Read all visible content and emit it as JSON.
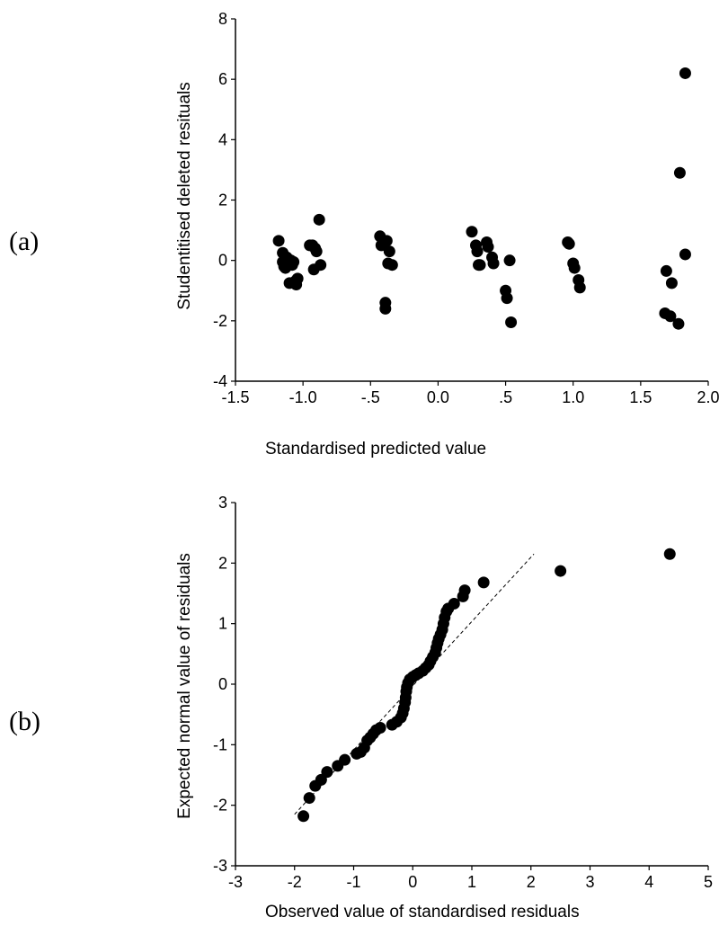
{
  "chart_data": [
    {
      "type": "scatter",
      "panel_label": "(a)",
      "title": "",
      "xlabel": "Standardised predicted value",
      "ylabel": "Studentitised deleted resituals",
      "xlim": [
        -1.5,
        2.0
      ],
      "ylim": [
        -4,
        8
      ],
      "xticks": [
        -1.5,
        -1.0,
        -0.5,
        0.0,
        0.5,
        1.0,
        1.5,
        2.0
      ],
      "xtick_labels": [
        "-1.5",
        "-1.0",
        "-.5",
        "0.0",
        ".5",
        "1.0",
        "1.5",
        "2.0"
      ],
      "yticks": [
        -4,
        -2,
        0,
        2,
        4,
        6,
        8
      ],
      "ytick_labels": [
        "-4",
        "-2",
        "0",
        "2",
        "4",
        "6",
        "8"
      ],
      "grid": false,
      "points": [
        [
          -1.18,
          0.65
        ],
        [
          -1.15,
          0.25
        ],
        [
          -1.15,
          -0.05
        ],
        [
          -1.14,
          -0.2
        ],
        [
          -1.13,
          -0.25
        ],
        [
          -1.12,
          0.1
        ],
        [
          -1.11,
          -0.1
        ],
        [
          -1.1,
          -0.75
        ],
        [
          -1.09,
          0.0
        ],
        [
          -1.08,
          -0.15
        ],
        [
          -1.07,
          -0.05
        ],
        [
          -1.06,
          -0.7
        ],
        [
          -1.05,
          -0.8
        ],
        [
          -1.04,
          -0.6
        ],
        [
          -0.95,
          0.5
        ],
        [
          -0.93,
          0.5
        ],
        [
          -0.92,
          -0.3
        ],
        [
          -0.91,
          0.4
        ],
        [
          -0.9,
          0.3
        ],
        [
          -0.88,
          1.35
        ],
        [
          -0.87,
          -0.15
        ],
        [
          -0.43,
          0.8
        ],
        [
          -0.42,
          0.5
        ],
        [
          -0.39,
          -1.4
        ],
        [
          -0.39,
          -1.6
        ],
        [
          -0.38,
          0.65
        ],
        [
          -0.37,
          -0.1
        ],
        [
          -0.36,
          0.3
        ],
        [
          -0.34,
          -0.15
        ],
        [
          0.25,
          0.95
        ],
        [
          0.28,
          0.5
        ],
        [
          0.29,
          0.3
        ],
        [
          0.3,
          -0.15
        ],
        [
          0.31,
          -0.15
        ],
        [
          0.36,
          0.6
        ],
        [
          0.37,
          0.45
        ],
        [
          0.4,
          0.1
        ],
        [
          0.41,
          -0.1
        ],
        [
          0.5,
          -1.0
        ],
        [
          0.51,
          -1.25
        ],
        [
          0.53,
          0.0
        ],
        [
          0.54,
          -2.05
        ],
        [
          0.96,
          0.6
        ],
        [
          0.97,
          0.55
        ],
        [
          1.0,
          -0.1
        ],
        [
          1.01,
          -0.25
        ],
        [
          1.04,
          -0.65
        ],
        [
          1.05,
          -0.9
        ],
        [
          1.68,
          -1.75
        ],
        [
          1.69,
          -0.35
        ],
        [
          1.72,
          -1.85
        ],
        [
          1.73,
          -0.75
        ],
        [
          1.78,
          -2.1
        ],
        [
          1.79,
          2.9
        ],
        [
          1.83,
          0.2
        ],
        [
          1.83,
          6.2
        ]
      ]
    },
    {
      "type": "scatter",
      "panel_label": "(b)",
      "title": "",
      "xlabel": "Observed value of standardised residuals",
      "ylabel": "Expected normal value of residuals",
      "xlim": [
        -3,
        5
      ],
      "ylim": [
        -3,
        3
      ],
      "xticks": [
        -3,
        -2,
        -1,
        0,
        1,
        2,
        3,
        4,
        5
      ],
      "xtick_labels": [
        "-3",
        "-2",
        "-1",
        "0",
        "1",
        "2",
        "3",
        "4",
        "5"
      ],
      "yticks": [
        -3,
        -2,
        -1,
        0,
        1,
        2,
        3
      ],
      "ytick_labels": [
        "-3",
        "-2",
        "-1",
        "0",
        "1",
        "2",
        "3"
      ],
      "grid": false,
      "reference_line": {
        "style": "dashed",
        "from": [
          -2.0,
          -2.15
        ],
        "to": [
          2.05,
          2.15
        ]
      },
      "points": [
        [
          -1.85,
          -2.18
        ],
        [
          -1.75,
          -1.88
        ],
        [
          -1.65,
          -1.68
        ],
        [
          -1.55,
          -1.58
        ],
        [
          -1.45,
          -1.45
        ],
        [
          -1.27,
          -1.35
        ],
        [
          -1.15,
          -1.25
        ],
        [
          -0.95,
          -1.15
        ],
        [
          -0.88,
          -1.12
        ],
        [
          -0.82,
          -1.05
        ],
        [
          -0.77,
          -0.93
        ],
        [
          -0.72,
          -0.88
        ],
        [
          -0.67,
          -0.82
        ],
        [
          -0.62,
          -0.76
        ],
        [
          -0.55,
          -0.72
        ],
        [
          -0.35,
          -0.67
        ],
        [
          -0.27,
          -0.62
        ],
        [
          -0.2,
          -0.55
        ],
        [
          -0.17,
          -0.48
        ],
        [
          -0.15,
          -0.4
        ],
        [
          -0.13,
          -0.3
        ],
        [
          -0.12,
          -0.22
        ],
        [
          -0.11,
          -0.12
        ],
        [
          -0.1,
          -0.05
        ],
        [
          -0.08,
          0.02
        ],
        [
          -0.05,
          0.08
        ],
        [
          0.0,
          0.12
        ],
        [
          0.05,
          0.15
        ],
        [
          0.1,
          0.18
        ],
        [
          0.17,
          0.22
        ],
        [
          0.22,
          0.27
        ],
        [
          0.27,
          0.32
        ],
        [
          0.3,
          0.38
        ],
        [
          0.34,
          0.45
        ],
        [
          0.38,
          0.52
        ],
        [
          0.4,
          0.6
        ],
        [
          0.42,
          0.68
        ],
        [
          0.44,
          0.75
        ],
        [
          0.47,
          0.82
        ],
        [
          0.5,
          0.9
        ],
        [
          0.52,
          1.0
        ],
        [
          0.54,
          1.1
        ],
        [
          0.57,
          1.2
        ],
        [
          0.6,
          1.25
        ],
        [
          0.7,
          1.33
        ],
        [
          0.85,
          1.45
        ],
        [
          0.88,
          1.55
        ],
        [
          1.2,
          1.68
        ],
        [
          2.5,
          1.87
        ],
        [
          4.35,
          2.15
        ]
      ]
    }
  ]
}
